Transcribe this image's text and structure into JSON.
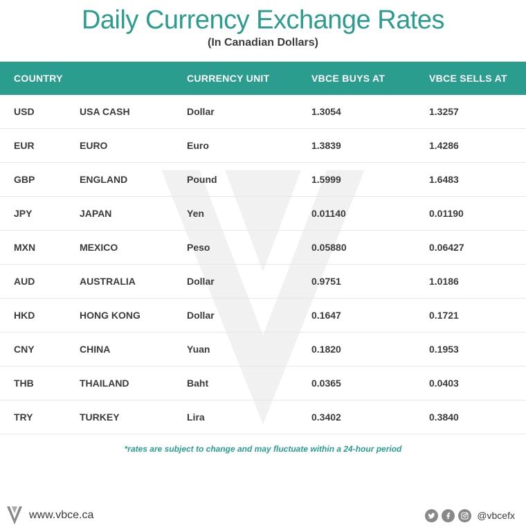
{
  "title": "Daily Currency Exchange Rates",
  "subtitle": "(In Canadian Dollars)",
  "footnote": "*rates are subject to change and may fluctuate within a 24-hour period",
  "website": "www.vbce.ca",
  "handle": "@vbcefx",
  "colors": {
    "brand": "#2a9d8f",
    "text": "#3a3a3a",
    "border": "#e6e6e6",
    "social_icon_bg": "#888888",
    "background": "#ffffff"
  },
  "table": {
    "headers": {
      "country": "COUNTRY",
      "unit": "CURRENCY UNIT",
      "buy": "VBCE BUYS AT",
      "sell": "VBCE SELLS AT"
    },
    "rows": [
      {
        "code": "USD",
        "country": "USA CASH",
        "unit": "Dollar",
        "buy": "1.3054",
        "sell": "1.3257"
      },
      {
        "code": "EUR",
        "country": "EURO",
        "unit": "Euro",
        "buy": "1.3839",
        "sell": "1.4286"
      },
      {
        "code": "GBP",
        "country": "ENGLAND",
        "unit": "Pound",
        "buy": "1.5999",
        "sell": "1.6483"
      },
      {
        "code": "JPY",
        "country": "JAPAN",
        "unit": "Yen",
        "buy": "0.01140",
        "sell": "0.01190"
      },
      {
        "code": "MXN",
        "country": "MEXICO",
        "unit": "Peso",
        "buy": "0.05880",
        "sell": "0.06427"
      },
      {
        "code": "AUD",
        "country": "AUSTRALIA",
        "unit": "Dollar",
        "buy": "0.9751",
        "sell": "1.0186"
      },
      {
        "code": "HKD",
        "country": "HONG KONG",
        "unit": "Dollar",
        "buy": "0.1647",
        "sell": "0.1721"
      },
      {
        "code": "CNY",
        "country": "CHINA",
        "unit": "Yuan",
        "buy": "0.1820",
        "sell": "0.1953"
      },
      {
        "code": "THB",
        "country": " THAILAND",
        "unit": "Baht",
        "buy": "0.0365",
        "sell": "0.0403"
      },
      {
        "code": "TRY",
        "country": "TURKEY",
        "unit": "Lira",
        "buy": "0.3402",
        "sell": "0.3840"
      }
    ]
  }
}
